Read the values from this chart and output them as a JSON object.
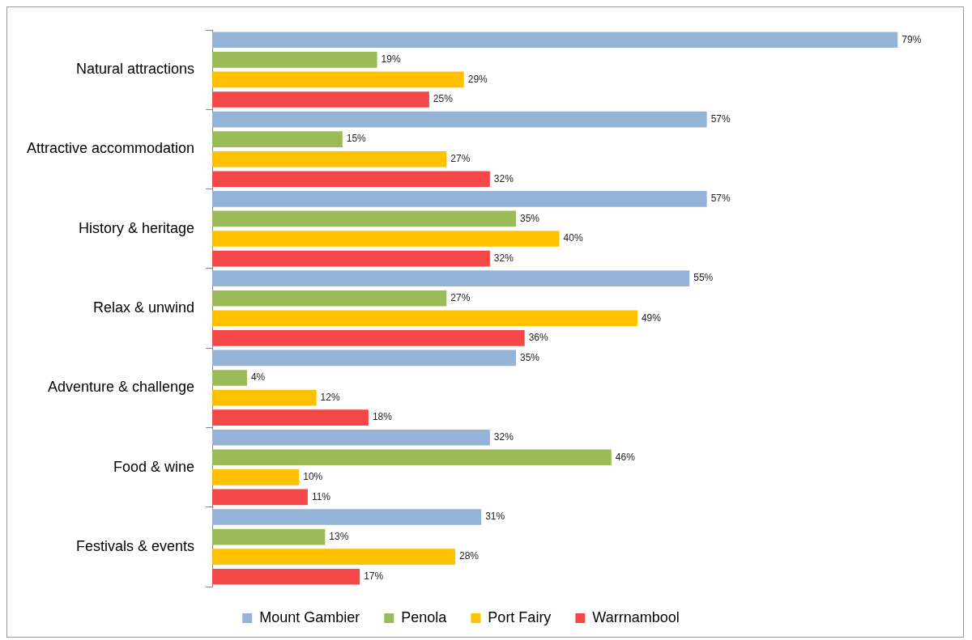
{
  "chart_data": {
    "type": "bar",
    "orientation": "horizontal",
    "categories": [
      "Natural attractions",
      "Attractive accommodation",
      "History & heritage",
      "Relax & unwind",
      "Adventure & challenge",
      "Food & wine",
      "Festivals & events"
    ],
    "series": [
      {
        "name": "Mount Gambier",
        "color": "#95b3d7",
        "values": [
          79,
          57,
          57,
          55,
          35,
          32,
          31
        ],
        "value_labels": [
          "79%",
          "57%",
          "57%",
          "55%",
          "35%",
          "32%",
          "31%"
        ]
      },
      {
        "name": "Penola",
        "color": "#9bbb59",
        "values": [
          19,
          15,
          35,
          27,
          4,
          46,
          13
        ],
        "value_labels": [
          "19%",
          "15%",
          "35%",
          "27%",
          "4%",
          "46%",
          "13%"
        ]
      },
      {
        "name": "Port Fairy",
        "color": "#ffc000",
        "values": [
          29,
          27,
          40,
          49,
          12,
          10,
          28
        ],
        "value_labels": [
          "29%",
          "27%",
          "40%",
          "49%",
          "12%",
          "10%",
          "28%"
        ]
      },
      {
        "name": "Warrnambool",
        "color": "#f44848",
        "values": [
          25,
          32,
          32,
          36,
          18,
          11,
          17
        ],
        "value_labels": [
          "25%",
          "32%",
          "32%",
          "36%",
          "18%",
          "11%",
          "17%"
        ]
      }
    ],
    "legend": "bottom",
    "tick_labels": "y",
    "grid": false
  }
}
